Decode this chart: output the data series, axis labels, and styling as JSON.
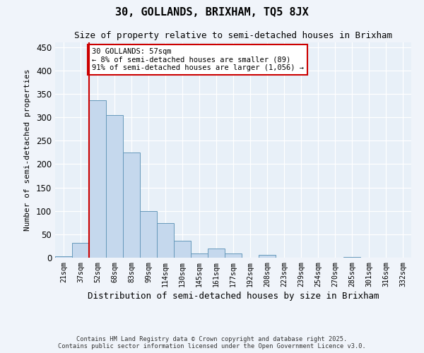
{
  "title1": "30, GOLLANDS, BRIXHAM, TQ5 8JX",
  "title2": "Size of property relative to semi-detached houses in Brixham",
  "xlabel": "Distribution of semi-detached houses by size in Brixham",
  "ylabel": "Number of semi-detached properties",
  "categories": [
    "21sqm",
    "37sqm",
    "52sqm",
    "68sqm",
    "83sqm",
    "99sqm",
    "114sqm",
    "130sqm",
    "145sqm",
    "161sqm",
    "177sqm",
    "192sqm",
    "208sqm",
    "223sqm",
    "239sqm",
    "254sqm",
    "270sqm",
    "285sqm",
    "301sqm",
    "316sqm",
    "332sqm"
  ],
  "values": [
    3,
    32,
    336,
    304,
    224,
    100,
    74,
    36,
    9,
    20,
    9,
    0,
    6,
    0,
    0,
    0,
    0,
    1,
    0,
    0,
    0
  ],
  "bar_facecolor": "#c5d8ed",
  "bar_edgecolor": "#6699bb",
  "vline_color": "#cc0000",
  "vline_x_index": 2,
  "annotation_text": "30 GOLLANDS: 57sqm\n← 8% of semi-detached houses are smaller (89)\n91% of semi-detached houses are larger (1,056) →",
  "annotation_box_edgecolor": "#cc0000",
  "annotation_box_facecolor": "white",
  "ylim": [
    0,
    460
  ],
  "yticks": [
    0,
    50,
    100,
    150,
    200,
    250,
    300,
    350,
    400,
    450
  ],
  "footer1": "Contains HM Land Registry data © Crown copyright and database right 2025.",
  "footer2": "Contains public sector information licensed under the Open Government Licence v3.0.",
  "bg_color": "#f0f4fa",
  "plot_bg_color": "#e8f0f8"
}
